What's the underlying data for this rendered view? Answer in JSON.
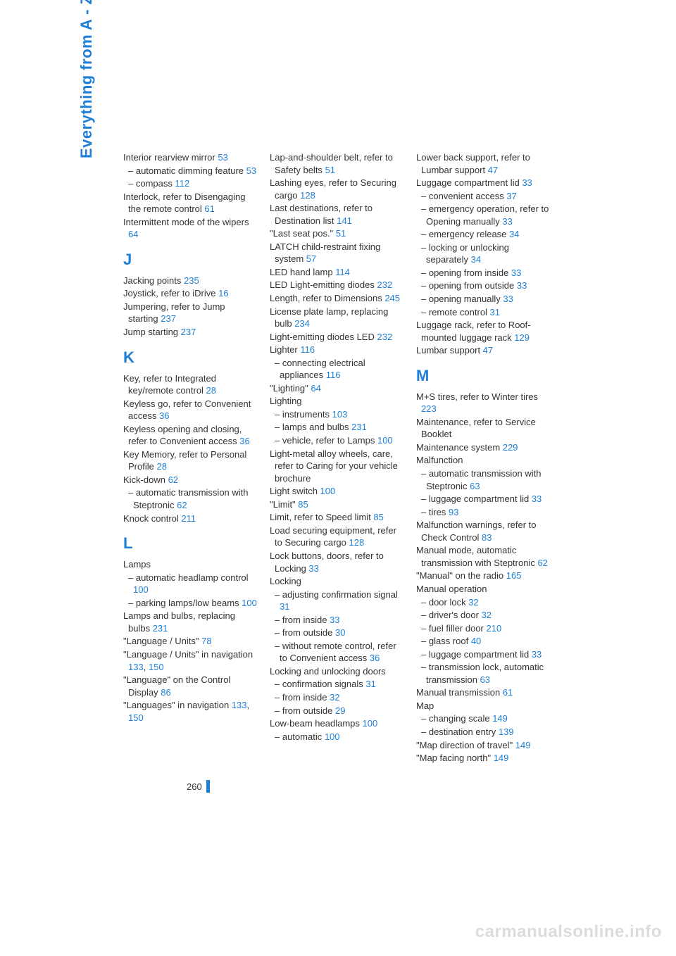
{
  "sidebar_title": "Everything from A - Z",
  "page_number": "260",
  "watermark": "carmanualsonline.info",
  "colors": {
    "accent": "#1e7fd6",
    "text": "#333333",
    "watermark": "#dcdcdc",
    "background": "#ffffff"
  },
  "columns": [
    {
      "entries": [
        {
          "type": "main",
          "text": "Interior rearview mirror ",
          "ref": "53"
        },
        {
          "type": "sub",
          "text": "– automatic dimming feature ",
          "ref": "53"
        },
        {
          "type": "sub",
          "text": "– compass ",
          "ref": "112"
        },
        {
          "type": "main",
          "text": "Interlock, refer to Disengaging the remote control ",
          "ref": "61"
        },
        {
          "type": "main",
          "text": "Intermittent mode of the wipers ",
          "ref": "64"
        },
        {
          "type": "letter",
          "text": "J"
        },
        {
          "type": "main",
          "text": "Jacking points ",
          "ref": "235"
        },
        {
          "type": "main",
          "text": "Joystick, refer to iDrive ",
          "ref": "16"
        },
        {
          "type": "main",
          "text": "Jumpering, refer to Jump starting ",
          "ref": "237"
        },
        {
          "type": "main",
          "text": "Jump starting ",
          "ref": "237"
        },
        {
          "type": "letter",
          "text": "K"
        },
        {
          "type": "main",
          "text": "Key, refer to Integrated key/remote control ",
          "ref": "28"
        },
        {
          "type": "main",
          "text": "Keyless go, refer to Convenient access ",
          "ref": "36"
        },
        {
          "type": "main",
          "text": "Keyless opening and closing, refer to Convenient access ",
          "ref": "36"
        },
        {
          "type": "main",
          "text": "Key Memory, refer to Personal Profile ",
          "ref": "28"
        },
        {
          "type": "main",
          "text": "Kick-down ",
          "ref": "62"
        },
        {
          "type": "sub",
          "text": "– automatic transmission with Steptronic ",
          "ref": "62"
        },
        {
          "type": "main",
          "text": "Knock control ",
          "ref": "211"
        },
        {
          "type": "letter",
          "text": "L"
        },
        {
          "type": "main",
          "text": "Lamps",
          "ref": ""
        },
        {
          "type": "sub",
          "text": "– automatic headlamp control ",
          "ref": "100"
        },
        {
          "type": "sub",
          "text": "– parking lamps/low beams ",
          "ref": "100"
        },
        {
          "type": "main",
          "text": "Lamps and bulbs, replacing bulbs ",
          "ref": "231"
        },
        {
          "type": "main",
          "text": "\"Language / Units\" ",
          "ref": "78"
        },
        {
          "type": "main",
          "text": "\"Language / Units\" in navigation ",
          "refs": [
            "133",
            "150"
          ]
        },
        {
          "type": "main",
          "text": "\"Language\" on the Control Display ",
          "ref": "86"
        },
        {
          "type": "main",
          "text": "\"Languages\" in navigation ",
          "refs": [
            "133",
            "150"
          ]
        }
      ]
    },
    {
      "entries": [
        {
          "type": "main",
          "text": "Lap-and-shoulder belt, refer to Safety belts ",
          "ref": "51"
        },
        {
          "type": "main",
          "text": "Lashing eyes, refer to Securing cargo ",
          "ref": "128"
        },
        {
          "type": "main",
          "text": "Last destinations, refer to Destination list ",
          "ref": "141"
        },
        {
          "type": "main",
          "text": "\"Last seat pos.\" ",
          "ref": "51"
        },
        {
          "type": "main",
          "text": "LATCH child-restraint fixing system ",
          "ref": "57"
        },
        {
          "type": "main",
          "text": "LED hand lamp ",
          "ref": "114"
        },
        {
          "type": "main",
          "text": "LED Light-emitting diodes ",
          "ref": "232"
        },
        {
          "type": "main",
          "text": "Length, refer to Dimensions ",
          "ref": "245"
        },
        {
          "type": "main",
          "text": "License plate lamp, replacing bulb ",
          "ref": "234"
        },
        {
          "type": "main",
          "text": "Light-emitting diodes LED ",
          "ref": "232"
        },
        {
          "type": "main",
          "text": "Lighter ",
          "ref": "116"
        },
        {
          "type": "sub",
          "text": "– connecting electrical appliances ",
          "ref": "116"
        },
        {
          "type": "main",
          "text": "\"Lighting\" ",
          "ref": "64"
        },
        {
          "type": "main",
          "text": "Lighting",
          "ref": ""
        },
        {
          "type": "sub",
          "text": "– instruments ",
          "ref": "103"
        },
        {
          "type": "sub",
          "text": "– lamps and bulbs ",
          "ref": "231"
        },
        {
          "type": "sub",
          "text": "– vehicle, refer to Lamps ",
          "ref": "100"
        },
        {
          "type": "main",
          "text": "Light-metal alloy wheels, care, refer to Caring for your vehicle brochure",
          "ref": ""
        },
        {
          "type": "main",
          "text": "Light switch ",
          "ref": "100"
        },
        {
          "type": "main",
          "text": "\"Limit\" ",
          "ref": "85"
        },
        {
          "type": "main",
          "text": "Limit, refer to Speed limit ",
          "ref": "85"
        },
        {
          "type": "main",
          "text": "Load securing equipment, refer to Securing cargo ",
          "ref": "128"
        },
        {
          "type": "main",
          "text": "Lock buttons, doors, refer to Locking ",
          "ref": "33"
        },
        {
          "type": "main",
          "text": "Locking",
          "ref": ""
        },
        {
          "type": "sub",
          "text": "– adjusting confirmation signal ",
          "ref": "31"
        },
        {
          "type": "sub",
          "text": "– from inside ",
          "ref": "33"
        },
        {
          "type": "sub",
          "text": "– from outside ",
          "ref": "30"
        },
        {
          "type": "sub",
          "text": "– without remote control, refer to Convenient access ",
          "ref": "36"
        },
        {
          "type": "main",
          "text": "Locking and unlocking doors",
          "ref": ""
        },
        {
          "type": "sub",
          "text": "– confirmation signals ",
          "ref": "31"
        },
        {
          "type": "sub",
          "text": "– from inside ",
          "ref": "32"
        },
        {
          "type": "sub",
          "text": "– from outside ",
          "ref": "29"
        },
        {
          "type": "main",
          "text": "Low-beam headlamps ",
          "ref": "100"
        },
        {
          "type": "sub",
          "text": "– automatic ",
          "ref": "100"
        }
      ]
    },
    {
      "entries": [
        {
          "type": "main",
          "text": "Lower back support, refer to Lumbar support ",
          "ref": "47"
        },
        {
          "type": "main",
          "text": "Luggage compartment lid ",
          "ref": "33"
        },
        {
          "type": "sub",
          "text": "– convenient access ",
          "ref": "37"
        },
        {
          "type": "sub",
          "text": "– emergency operation, refer to Opening manually ",
          "ref": "33"
        },
        {
          "type": "sub",
          "text": "– emergency release ",
          "ref": "34"
        },
        {
          "type": "sub",
          "text": "– locking or unlocking separately ",
          "ref": "34"
        },
        {
          "type": "sub",
          "text": "– opening from inside ",
          "ref": "33"
        },
        {
          "type": "sub",
          "text": "– opening from outside ",
          "ref": "33"
        },
        {
          "type": "sub",
          "text": "– opening manually ",
          "ref": "33"
        },
        {
          "type": "sub",
          "text": "– remote control ",
          "ref": "31"
        },
        {
          "type": "main",
          "text": "Luggage rack, refer to Roof-mounted luggage rack ",
          "ref": "129"
        },
        {
          "type": "main",
          "text": "Lumbar support ",
          "ref": "47"
        },
        {
          "type": "letter",
          "text": "M"
        },
        {
          "type": "main",
          "text": "M+S tires, refer to Winter tires ",
          "ref": "223"
        },
        {
          "type": "main",
          "text": "Maintenance, refer to Service Booklet",
          "ref": ""
        },
        {
          "type": "main",
          "text": "Maintenance system ",
          "ref": "229"
        },
        {
          "type": "main",
          "text": "Malfunction",
          "ref": ""
        },
        {
          "type": "sub",
          "text": "– automatic transmission with Steptronic ",
          "ref": "63"
        },
        {
          "type": "sub",
          "text": "– luggage compartment lid ",
          "ref": "33"
        },
        {
          "type": "sub",
          "text": "– tires ",
          "ref": "93"
        },
        {
          "type": "main",
          "text": "Malfunction warnings, refer to Check Control ",
          "ref": "83"
        },
        {
          "type": "main",
          "text": "Manual mode, automatic transmission with Steptronic ",
          "ref": "62"
        },
        {
          "type": "main",
          "text": "\"Manual\" on the radio ",
          "ref": "165"
        },
        {
          "type": "main",
          "text": "Manual operation",
          "ref": ""
        },
        {
          "type": "sub",
          "text": "– door lock ",
          "ref": "32"
        },
        {
          "type": "sub",
          "text": "– driver's door ",
          "ref": "32"
        },
        {
          "type": "sub",
          "text": "– fuel filler door ",
          "ref": "210"
        },
        {
          "type": "sub",
          "text": "– glass roof ",
          "ref": "40"
        },
        {
          "type": "sub",
          "text": "– luggage compartment lid ",
          "ref": "33"
        },
        {
          "type": "sub",
          "text": "– transmission lock, automatic transmission ",
          "ref": "63"
        },
        {
          "type": "main",
          "text": "Manual transmission ",
          "ref": "61"
        },
        {
          "type": "main",
          "text": "Map",
          "ref": ""
        },
        {
          "type": "sub",
          "text": "– changing scale ",
          "ref": "149"
        },
        {
          "type": "sub",
          "text": "– destination entry ",
          "ref": "139"
        },
        {
          "type": "main",
          "text": "\"Map direction of travel\" ",
          "ref": "149"
        },
        {
          "type": "main",
          "text": "\"Map facing north\" ",
          "ref": "149"
        }
      ]
    }
  ]
}
